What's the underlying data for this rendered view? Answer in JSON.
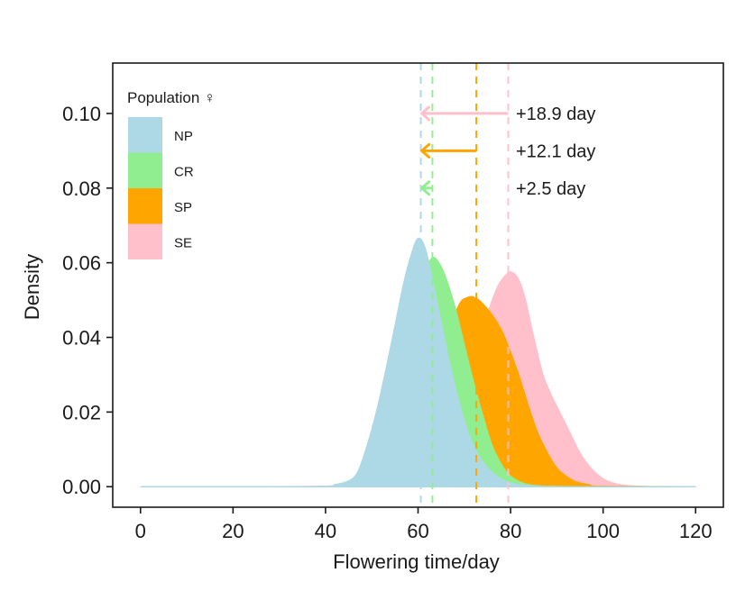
{
  "chart_data": {
    "type": "area",
    "subtype": "density",
    "title": "",
    "xlabel": "Flowering time/day",
    "ylabel": "Density",
    "xlim": [
      -6,
      126
    ],
    "ylim": [
      -0.0055,
      0.1135
    ],
    "x_ticks": [
      0,
      20,
      40,
      60,
      80,
      100,
      120
    ],
    "x_tick_labels": [
      "0",
      "20",
      "40",
      "60",
      "80",
      "100",
      "120"
    ],
    "y_ticks": [
      0.0,
      0.02,
      0.04,
      0.06,
      0.08,
      0.1
    ],
    "y_tick_labels": [
      "0.00",
      "0.02",
      "0.04",
      "0.06",
      "0.08",
      "0.10"
    ],
    "grid": false,
    "legend": {
      "title": "Population ♀",
      "placement": "top-left",
      "entries": [
        "NP",
        "CR",
        "SP",
        "SE"
      ]
    },
    "series": [
      {
        "name": "SE",
        "color": "#FFC0CB",
        "mean_line": 79.5,
        "x": [
          0,
          30,
          50,
          60,
          64,
          68,
          71,
          73,
          75,
          77,
          78.5,
          80,
          81.5,
          83,
          85,
          87,
          89,
          91,
          93,
          95,
          97,
          99,
          101,
          103,
          106,
          110,
          120
        ],
        "y": [
          0,
          0,
          0.0005,
          0.002,
          0.006,
          0.015,
          0.027,
          0.036,
          0.046,
          0.053,
          0.056,
          0.0575,
          0.056,
          0.051,
          0.04,
          0.03,
          0.024,
          0.019,
          0.014,
          0.009,
          0.0055,
          0.003,
          0.0015,
          0.0007,
          0.0002,
          0.0,
          0
        ]
      },
      {
        "name": "SP",
        "color": "#FFA500",
        "mean_line": 72.6,
        "x": [
          0,
          40,
          45,
          50,
          55,
          58,
          61,
          63,
          65,
          67,
          69,
          71,
          72.5,
          74,
          76,
          78,
          80,
          82,
          84,
          86,
          88,
          90,
          92,
          94,
          97,
          100,
          120
        ],
        "y": [
          0,
          0,
          0.0006,
          0.001,
          0.002,
          0.005,
          0.011,
          0.018,
          0.03,
          0.042,
          0.049,
          0.0508,
          0.0505,
          0.049,
          0.046,
          0.042,
          0.036,
          0.029,
          0.021,
          0.014,
          0.009,
          0.005,
          0.0028,
          0.0014,
          0.0005,
          0.0001,
          0
        ]
      },
      {
        "name": "CR",
        "color": "#90EE90",
        "mean_line": 63.1,
        "x": [
          0,
          38,
          42,
          45,
          48,
          51,
          54,
          57,
          59,
          61,
          63,
          64.5,
          66,
          68,
          70,
          72,
          74,
          76,
          78,
          80,
          83,
          87,
          95,
          120
        ],
        "y": [
          0,
          0,
          0.0005,
          0.0015,
          0.004,
          0.01,
          0.02,
          0.034,
          0.045,
          0.056,
          0.0612,
          0.06,
          0.056,
          0.048,
          0.038,
          0.028,
          0.019,
          0.011,
          0.006,
          0.0028,
          0.0008,
          0.0001,
          0,
          0
        ]
      },
      {
        "name": "NP",
        "color": "#ADD8E6",
        "mean_line": 60.6,
        "x": [
          0,
          38,
          42,
          45,
          47,
          49,
          51,
          53,
          55,
          57,
          58.5,
          60,
          61.5,
          63,
          65,
          67,
          69,
          71,
          73,
          75,
          77,
          79,
          82,
          86,
          95,
          120
        ],
        "y": [
          0,
          0,
          0.0005,
          0.0015,
          0.004,
          0.011,
          0.02,
          0.031,
          0.043,
          0.055,
          0.062,
          0.0665,
          0.064,
          0.056,
          0.044,
          0.032,
          0.022,
          0.014,
          0.0085,
          0.005,
          0.0028,
          0.0014,
          0.0005,
          0.0001,
          0,
          0
        ]
      }
    ],
    "annotations": [
      {
        "label": "+18.9 day",
        "from_x": 79.5,
        "to_x": 60.6,
        "y": 0.1,
        "color": "#FFC0CB"
      },
      {
        "label": "+12.1 day",
        "from_x": 72.6,
        "to_x": 60.6,
        "y": 0.09,
        "color": "#FFA500"
      },
      {
        "label": "+2.5 day",
        "from_x": 63.1,
        "to_x": 60.6,
        "y": 0.08,
        "color": "#90EE90"
      }
    ]
  }
}
